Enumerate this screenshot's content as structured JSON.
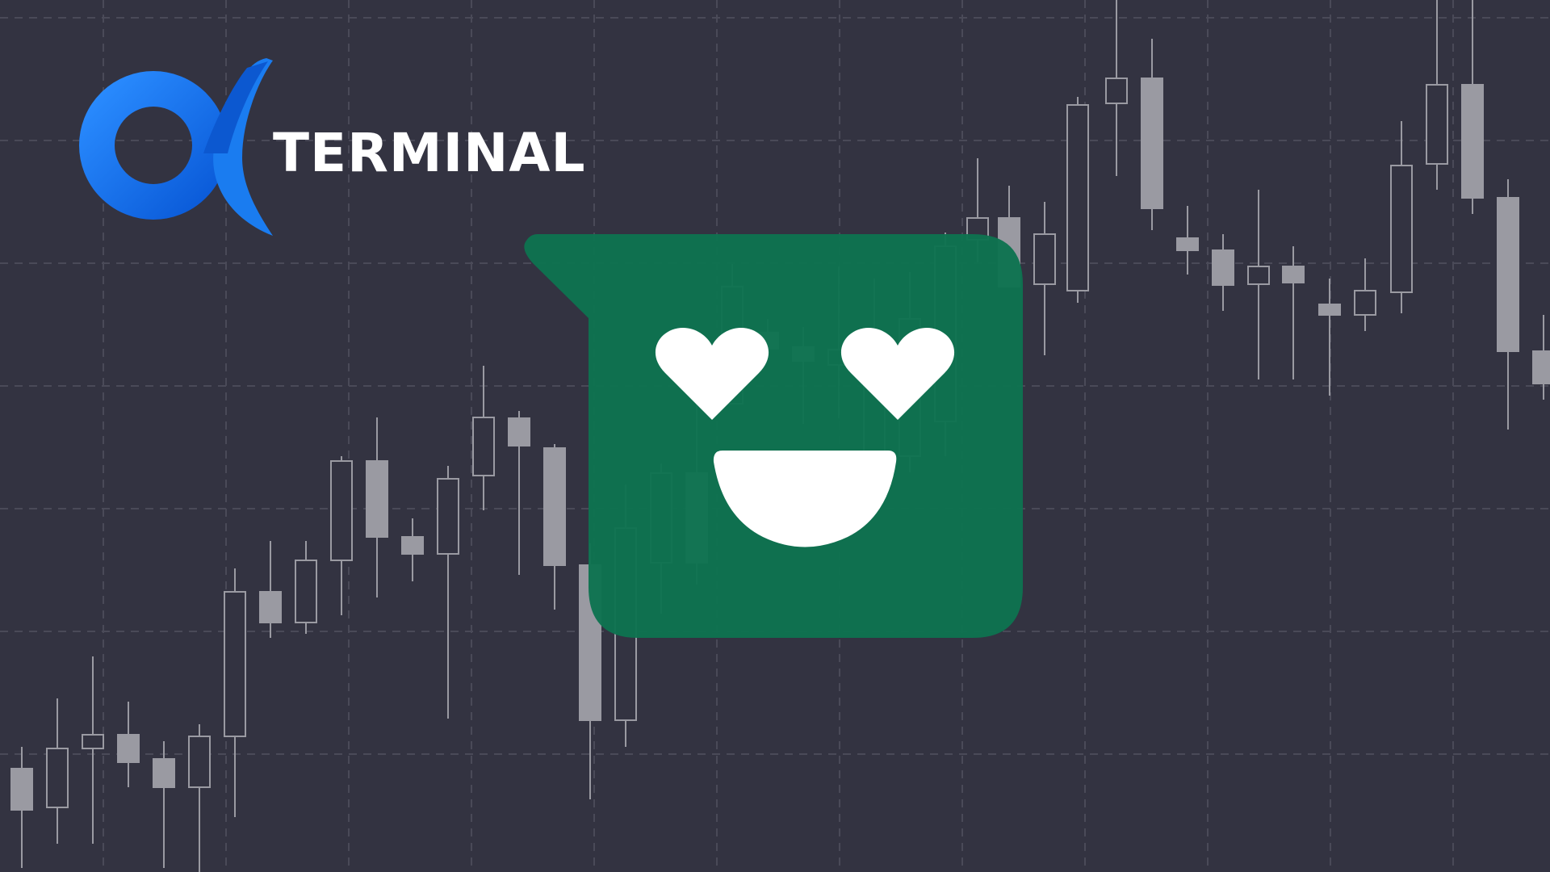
{
  "brand": {
    "name": "TERMINAL",
    "logo_icon": "alpha-logo-icon",
    "accent_color": "#1a7cf0"
  },
  "bubble": {
    "icon": "heart-eyes-smile-icon",
    "color": "#0e7350",
    "face_color": "#ffffff"
  },
  "background": {
    "color": "#333341",
    "grid_color": "#4a4a58",
    "candle_color": "#9a9aa2"
  }
}
